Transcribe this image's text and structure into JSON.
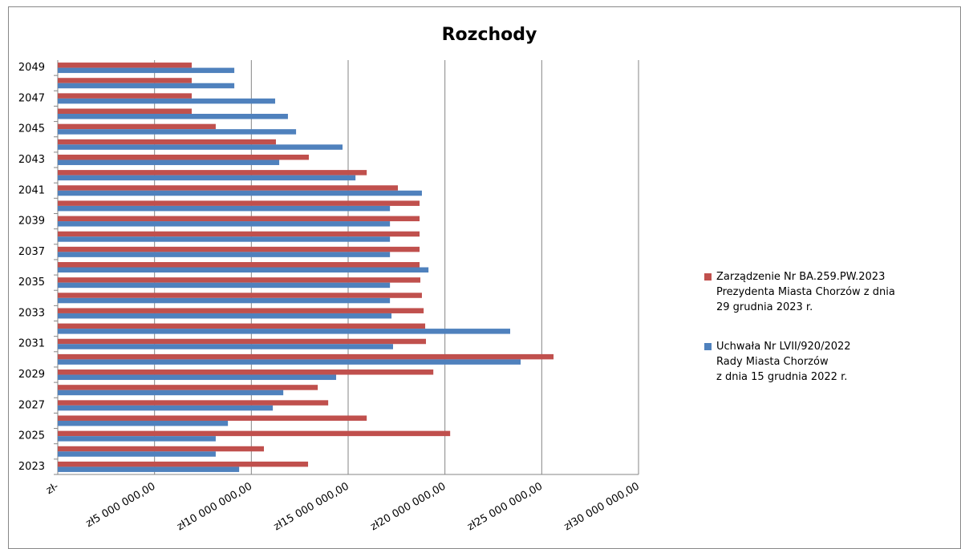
{
  "chart_data": {
    "type": "bar",
    "orientation": "horizontal",
    "title": "Rozchody",
    "categories": [
      "2023",
      null,
      "2025",
      null,
      "2027",
      null,
      "2029",
      null,
      "2031",
      null,
      "2033",
      null,
      "2035",
      null,
      "2037",
      null,
      "2039",
      null,
      "2041",
      null,
      "2043",
      null,
      "2045",
      null,
      "2047",
      null,
      "2049"
    ],
    "series": [
      {
        "name": "Zarządzenie Nr BA.259.PW.2023\nPrezydenta Miasta Chorzów z dnia\n29 grudnia 2023 r.",
        "color": "#c0504d",
        "values": [
          12930000,
          10650000,
          20270000,
          15960000,
          13970000,
          13430000,
          19400000,
          25610000,
          19020000,
          18980000,
          18900000,
          18810000,
          18730000,
          18690000,
          18690000,
          18690000,
          18690000,
          18690000,
          17570000,
          15960000,
          12970000,
          11270000,
          8160000,
          6920000,
          6920000,
          6920000,
          6920000
        ]
      },
      {
        "name": "Uchwała Nr LVII/920/2022\nRady Miasta Chorzów\nz dnia 15 grudnia 2022 r.",
        "color": "#4f81bd",
        "values": [
          9370000,
          8160000,
          8160000,
          8790000,
          11110000,
          11650000,
          14380000,
          23910000,
          17320000,
          23370000,
          17240000,
          17160000,
          17160000,
          19150000,
          17160000,
          17160000,
          17160000,
          17160000,
          18810000,
          15380000,
          11440000,
          14710000,
          12310000,
          11890000,
          11230000,
          9120000,
          9120000
        ]
      }
    ],
    "xlim": [
      0,
      30000000
    ],
    "xticks": [
      {
        "value": 0,
        "label": "zł-"
      },
      {
        "value": 5000000,
        "label": "zł5 000 000,00"
      },
      {
        "value": 10000000,
        "label": "zł10 000 000,00"
      },
      {
        "value": 15000000,
        "label": "zł15 000 000,00"
      },
      {
        "value": 20000000,
        "label": "zł20 000 000,00"
      },
      {
        "value": 25000000,
        "label": "zł25 000 000,00"
      },
      {
        "value": 30000000,
        "label": "zł30 000 000,00"
      }
    ],
    "grid": true,
    "legend": "right"
  }
}
